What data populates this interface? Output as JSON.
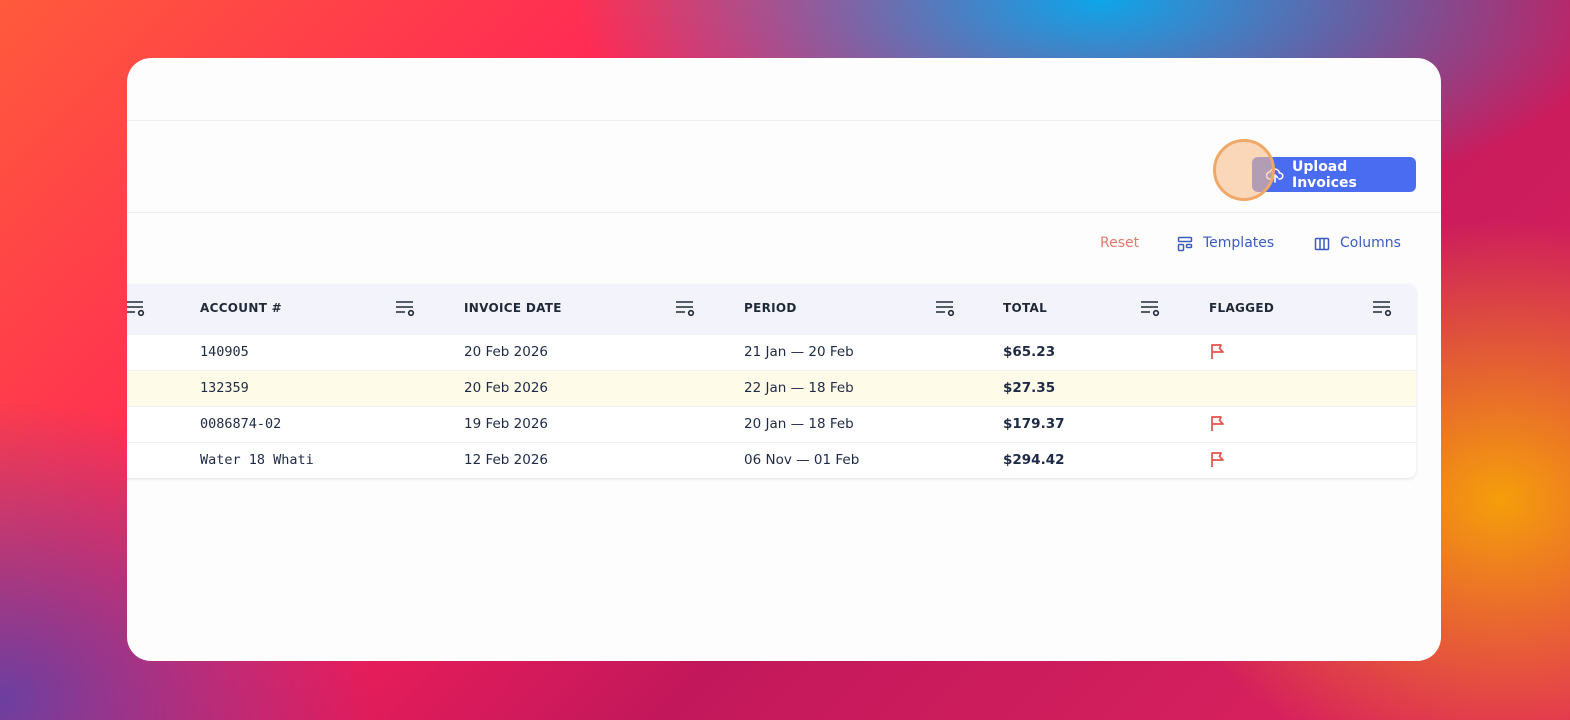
{
  "toolbar": {
    "upload_button": "Upload Invoices",
    "reset": "Reset",
    "templates": "Templates",
    "columns": "Columns"
  },
  "table": {
    "headers": [
      "ACCOUNT #",
      "INVOICE DATE",
      "PERIOD",
      "TOTAL",
      "FLAGGED"
    ],
    "rows": [
      {
        "account": "140905",
        "invoice_date": "20 Feb 2026",
        "period": "21 Jan — 20 Feb",
        "total": "$65.23",
        "flagged": true
      },
      {
        "account": "132359",
        "invoice_date": "20 Feb 2026",
        "period": "22 Jan — 18 Feb",
        "total": "$27.35",
        "flagged": false
      },
      {
        "account": "0086874-02",
        "invoice_date": "19 Feb 2026",
        "period": "20 Jan — 18 Feb",
        "total": "$179.37",
        "flagged": true
      },
      {
        "account": "Water 18 Whati",
        "invoice_date": "12 Feb 2026",
        "period": "06 Nov — 01 Feb",
        "total": "$294.42",
        "flagged": true
      }
    ]
  }
}
